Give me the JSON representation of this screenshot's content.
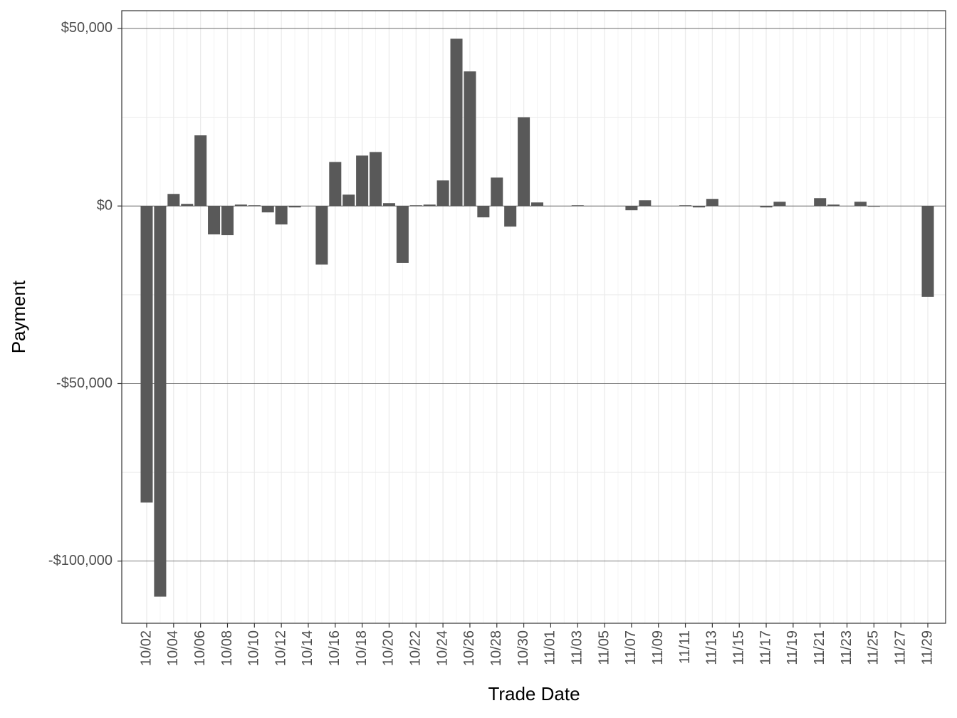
{
  "chart_data": {
    "type": "bar",
    "x_label": "Trade Date",
    "y_label": "Payment",
    "categories": [
      "10/02",
      null,
      "10/04",
      null,
      "10/06",
      null,
      "10/08",
      null,
      "10/10",
      null,
      "10/12",
      null,
      "10/14",
      null,
      "10/16",
      null,
      "10/18",
      null,
      "10/20",
      null,
      "10/22",
      null,
      "10/24",
      null,
      "10/26",
      null,
      "10/28",
      null,
      "10/30",
      null,
      "11/01",
      null,
      "11/03",
      null,
      "11/05",
      null,
      "11/07",
      null,
      "11/09",
      null,
      "11/11",
      null,
      "11/13",
      null,
      "11/15",
      null,
      "11/17",
      null,
      "11/19",
      null,
      "11/21",
      null,
      "11/23",
      null,
      "11/25",
      null,
      "11/27",
      null,
      "11/29"
    ],
    "values": [
      -83500,
      -110000,
      3400,
      600,
      19900,
      -8000,
      -8200,
      400,
      200,
      -1800,
      -5200,
      -400,
      0,
      -16500,
      12400,
      3200,
      14200,
      15200,
      800,
      -16000,
      200,
      400,
      7200,
      47100,
      37900,
      -3200,
      8000,
      -5800,
      25000,
      1000,
      0,
      0,
      200,
      0,
      0,
      0,
      -1200,
      1600,
      0,
      0,
      200,
      -400,
      2000,
      0,
      0,
      0,
      -400,
      1200,
      0,
      0,
      2200,
      400,
      0,
      1200,
      -200,
      0,
      0,
      0,
      -25600
    ],
    "color": "#595959",
    "ylim": [
      -117500,
      55000
    ],
    "yticks": [
      {
        "value": -100000,
        "label": "-$100,000"
      },
      {
        "value": -50000,
        "label": "-$50,000"
      },
      {
        "value": 0,
        "label": "$0"
      },
      {
        "value": 50000,
        "label": "$50,000"
      }
    ],
    "grid": true
  }
}
